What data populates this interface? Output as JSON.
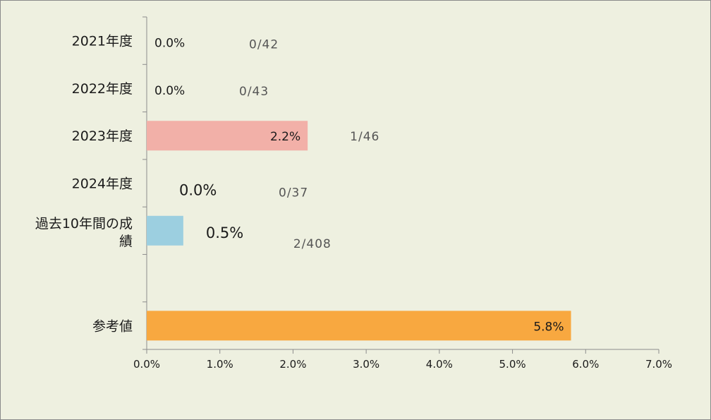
{
  "chart_data": {
    "type": "bar",
    "orientation": "horizontal",
    "categories": [
      {
        "label": "2021年度"
      },
      {
        "label": "2022年度"
      },
      {
        "label": "2023年度"
      },
      {
        "label": "2024年度"
      },
      {
        "label_lines": [
          "過去10年間の成",
          "績"
        ]
      },
      {
        "label": ""
      },
      {
        "label": "参考値"
      }
    ],
    "values": [
      0.0,
      0.0,
      2.2,
      0.0,
      0.5,
      null,
      5.8
    ],
    "value_labels": [
      "0.0%",
      "0.0%",
      "2.2%",
      "0.0%",
      "0.5%",
      "",
      "5.8%"
    ],
    "fraction_labels": [
      "0/42",
      "0/43",
      "1/46",
      "0/37",
      "2/408",
      "",
      ""
    ],
    "bar_colors": [
      "#f2b0a8",
      "#f2b0a8",
      "#f2b0a8",
      "#f2b0a8",
      "#9ccfe0",
      null,
      "#f8a840"
    ],
    "xlim": [
      0,
      7
    ],
    "x_ticks": [
      "0.0%",
      "1.0%",
      "2.0%",
      "3.0%",
      "4.0%",
      "5.0%",
      "6.0%",
      "7.0%"
    ],
    "grid": false,
    "legend": "none",
    "background_color": "#eef0e0"
  }
}
